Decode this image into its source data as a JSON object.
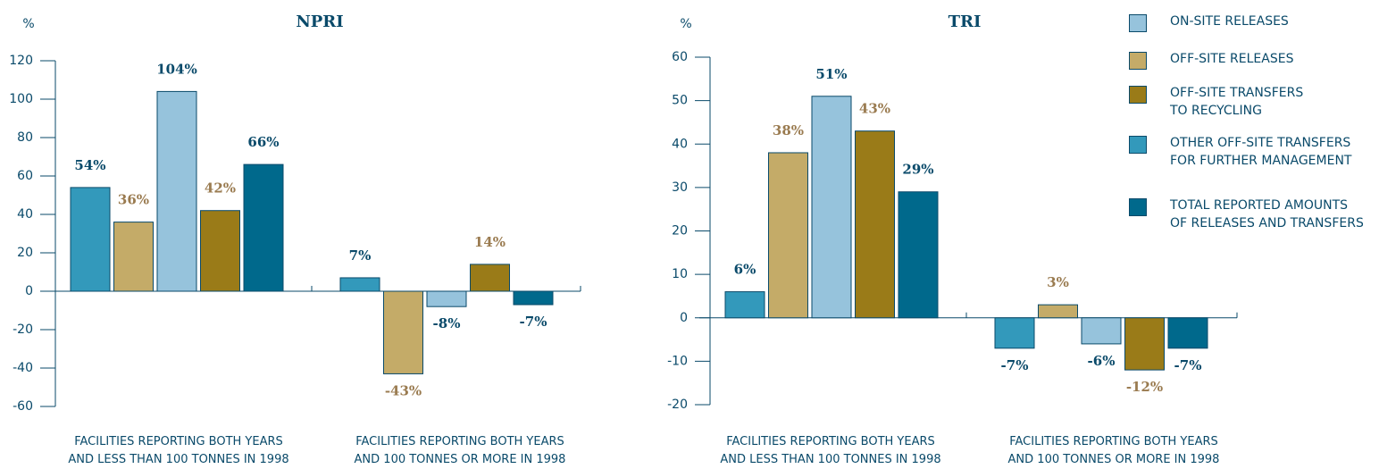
{
  "chart_data": [
    {
      "type": "bar",
      "title": "NPRI",
      "y_label": "%",
      "categories": [
        [
          "FACILITIES REPORTING BOTH YEARS",
          "AND LESS THAN 100 TONNES IN 1998"
        ],
        [
          "FACILITIES REPORTING BOTH YEARS",
          "AND 100 TONNES OR MORE IN 1998"
        ]
      ],
      "ylim": [
        -60,
        120
      ],
      "yticks": [
        -60,
        -40,
        -20,
        0,
        20,
        40,
        60,
        80,
        100,
        120
      ],
      "series": [
        {
          "name": "OTHER OFF-SITE TRANSFERS\nFOR FURTHER MANAGEMENT",
          "color": "#3399bb",
          "label_color": "#0a4a6a",
          "values": [
            54,
            7
          ],
          "value_labels": [
            "54%",
            "7%"
          ]
        },
        {
          "name": "OFF-SITE RELEASES",
          "color": "#c4ab68",
          "label_color": "#9a7b50",
          "values": [
            36,
            -43
          ],
          "value_labels": [
            "36%",
            "-43%"
          ]
        },
        {
          "name": "ON-SITE RELEASES",
          "color": "#96c3dc",
          "label_color": "#0a4a6a",
          "values": [
            104,
            -8
          ],
          "value_labels": [
            "104%",
            "-8%"
          ]
        },
        {
          "name": "OFF-SITE TRANSFERS\nTO RECYCLING",
          "color": "#9a7b18",
          "label_color": "#9a7b50",
          "values": [
            42,
            14
          ],
          "value_labels": [
            "42%",
            "14%"
          ]
        },
        {
          "name": "TOTAL REPORTED AMOUNTS\nOF RELEASES AND TRANSFERS",
          "color": "#00698c",
          "label_color": "#0a4a6a",
          "values": [
            66,
            -7
          ],
          "value_labels": [
            "66%",
            "-7%"
          ]
        }
      ]
    },
    {
      "type": "bar",
      "title": "TRI",
      "y_label": "%",
      "categories": [
        [
          "FACILITIES REPORTING BOTH YEARS",
          "AND LESS THAN 100 TONNES IN 1998"
        ],
        [
          "FACILITIES REPORTING BOTH YEARS",
          "AND 100 TONNES OR MORE IN 1998"
        ]
      ],
      "ylim": [
        -20,
        60
      ],
      "yticks": [
        -20,
        -10,
        0,
        10,
        20,
        30,
        40,
        50,
        60
      ],
      "series": [
        {
          "name": "OTHER OFF-SITE TRANSFERS\nFOR FURTHER MANAGEMENT",
          "color": "#3399bb",
          "label_color": "#0a4a6a",
          "values": [
            6,
            -7
          ],
          "value_labels": [
            "6%",
            "-7%"
          ]
        },
        {
          "name": "OFF-SITE RELEASES",
          "color": "#c4ab68",
          "label_color": "#9a7b50",
          "values": [
            38,
            3
          ],
          "value_labels": [
            "38%",
            "3%"
          ]
        },
        {
          "name": "ON-SITE RELEASES",
          "color": "#96c3dc",
          "label_color": "#0a4a6a",
          "values": [
            51,
            -6
          ],
          "value_labels": [
            "51%",
            "-6%"
          ]
        },
        {
          "name": "OFF-SITE TRANSFERS\nTO RECYCLING",
          "color": "#9a7b18",
          "label_color": "#9a7b50",
          "values": [
            43,
            -12
          ],
          "value_labels": [
            "43%",
            "-12%"
          ]
        },
        {
          "name": "TOTAL REPORTED AMOUNTS\nOF RELEASES AND TRANSFERS",
          "color": "#00698c",
          "label_color": "#0a4a6a",
          "values": [
            29,
            -7
          ],
          "value_labels": [
            "29%",
            "-7%"
          ]
        }
      ]
    }
  ]
}
